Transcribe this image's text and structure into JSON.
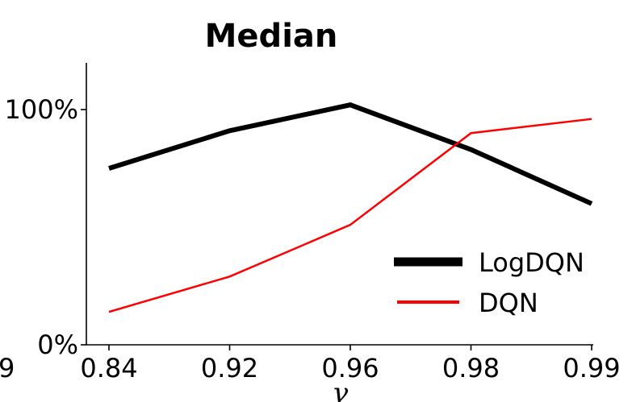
{
  "chart_data": {
    "type": "line",
    "title": "Median",
    "xlabel": "γ",
    "ylabel": "",
    "categories": [
      "0.84",
      "0.92",
      "0.96",
      "0.98",
      "0.99"
    ],
    "clipped_left_tick": "9",
    "y_ticks": [
      {
        "value": 0,
        "label": "0%"
      },
      {
        "value": 100,
        "label": "100%"
      }
    ],
    "ylim": [
      0,
      100
    ],
    "grid": false,
    "legend_position": "lower-right",
    "series": [
      {
        "name": "LogDQN",
        "color": "#000000",
        "values": [
          75,
          91,
          102,
          83,
          60
        ]
      },
      {
        "name": "DQN",
        "color": "#ff0000",
        "values": [
          14,
          29,
          51,
          90,
          96
        ]
      }
    ]
  }
}
